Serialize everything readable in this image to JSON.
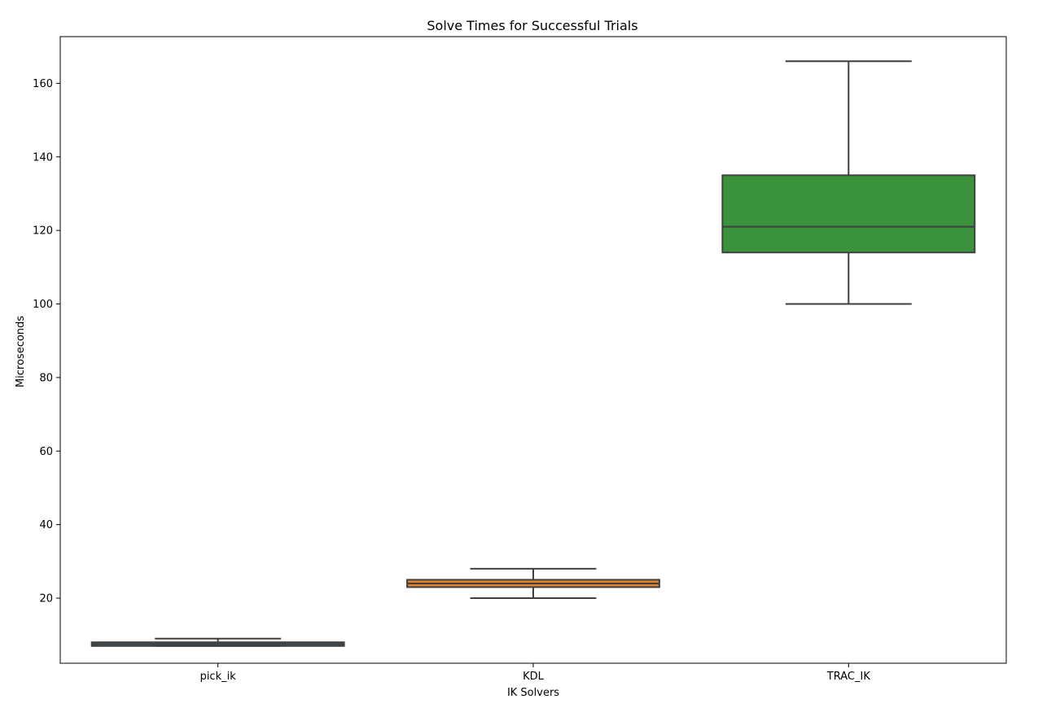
{
  "chart_data": {
    "type": "box",
    "title": "Solve Times for Successful Trials",
    "xlabel": "IK Solvers",
    "ylabel": "Microseconds",
    "categories": [
      "pick_ik",
      "KDL",
      "TRAC_IK"
    ],
    "boxes": [
      {
        "category": "pick_ik",
        "color": "#3274a1",
        "whisker_low": 7,
        "q1": 7,
        "median": 7.5,
        "q3": 8,
        "whisker_high": 9
      },
      {
        "category": "KDL",
        "color": "#e1812c",
        "whisker_low": 20,
        "q1": 23,
        "median": 24,
        "q3": 25,
        "whisker_high": 28
      },
      {
        "category": "TRAC_IK",
        "color": "#3a923a",
        "whisker_low": 100,
        "q1": 114,
        "median": 121,
        "q3": 135,
        "whisker_high": 166
      }
    ],
    "ylim": [
      2.3,
      172.7
    ],
    "yticks": [
      20,
      40,
      60,
      80,
      100,
      120,
      140,
      160
    ],
    "grid": false,
    "legend": "none"
  }
}
